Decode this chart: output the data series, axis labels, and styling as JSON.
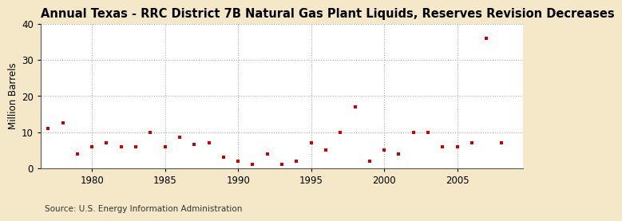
{
  "title": "Annual Texas - RRC District 7B Natural Gas Plant Liquids, Reserves Revision Decreases",
  "ylabel": "Million Barrels",
  "source": "Source: U.S. Energy Information Administration",
  "figure_bg": "#f5e8c8",
  "plot_bg": "#ffffff",
  "marker_color": "#cc0000",
  "years": [
    1977,
    1978,
    1979,
    1980,
    1981,
    1982,
    1983,
    1984,
    1985,
    1986,
    1987,
    1988,
    1989,
    1990,
    1991,
    1992,
    1993,
    1994,
    1995,
    1996,
    1997,
    1998,
    1999,
    2000,
    2001,
    2002,
    2003,
    2004,
    2005,
    2006,
    2007,
    2008
  ],
  "values": [
    11.0,
    12.5,
    4.0,
    6.0,
    7.0,
    6.0,
    6.0,
    10.0,
    6.0,
    8.5,
    6.5,
    7.0,
    3.0,
    2.0,
    1.0,
    4.0,
    1.0,
    2.0,
    7.0,
    5.0,
    10.0,
    17.0,
    2.0,
    5.0,
    4.0,
    10.0,
    10.0,
    6.0,
    6.0,
    7.0,
    36.0,
    7.0
  ],
  "xlim": [
    1976.5,
    2009.5
  ],
  "ylim": [
    0,
    40
  ],
  "xticks": [
    1980,
    1985,
    1990,
    1995,
    2000,
    2005
  ],
  "yticks": [
    0,
    10,
    20,
    30,
    40
  ],
  "title_fontsize": 10.5,
  "label_fontsize": 8.5,
  "source_fontsize": 7.5,
  "tick_fontsize": 8.5
}
